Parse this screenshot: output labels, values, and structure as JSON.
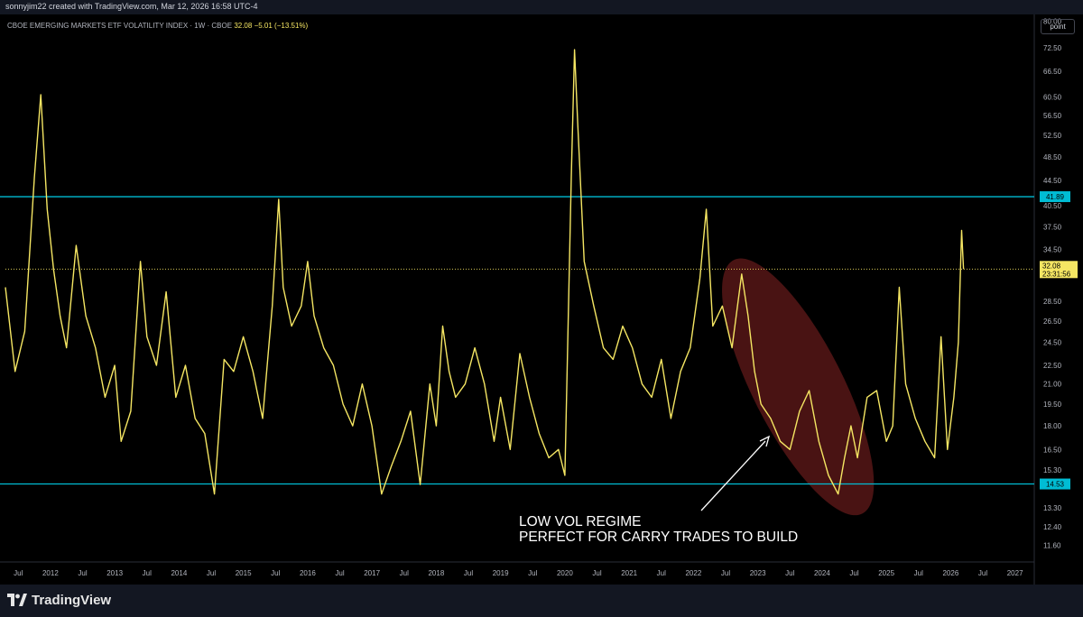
{
  "header": {
    "credit": "sonnyjim22 created with TradingView.com, Mar 12, 2026 16:58 UTC-4"
  },
  "legend": {
    "title": "CBOE EMERGING MARKETS ETF VOLATILITY INDEX · 1W · CBOE",
    "last": "32.08",
    "change": "−5.01 (−13.51%)"
  },
  "toolbar": {
    "point_label": "point"
  },
  "annotation": {
    "line1": "LOW VOL REGIME",
    "line2": "PERFECT FOR CARRY TRADES TO BUILD"
  },
  "footer": {
    "brand": "TradingView"
  },
  "colors": {
    "line": "#f5e663",
    "hline": "#00bcd4",
    "ellipse": "#7a2020",
    "price_tag": "#f5e663"
  },
  "chart_data": {
    "type": "line",
    "symbol": "CBOE Emerging Markets ETF Volatility Index (VXEEM), weekly",
    "y_scale": "log",
    "ylim": [
      10.9,
      82
    ],
    "xlim": [
      2011.3,
      2027.3
    ],
    "y_ticks": [
      "80.00",
      "72.50",
      "66.50",
      "60.50",
      "56.50",
      "52.50",
      "48.50",
      "44.50",
      "40.50",
      "37.50",
      "34.50",
      "28.50",
      "26.50",
      "24.50",
      "22.50",
      "21.00",
      "19.50",
      "18.00",
      "16.50",
      "15.30",
      "13.30",
      "12.40",
      "11.60"
    ],
    "x_ticks": [
      "Jul",
      "2012",
      "Jul",
      "2013",
      "Jul",
      "2014",
      "Jul",
      "2015",
      "Jul",
      "2016",
      "Jul",
      "2017",
      "Jul",
      "2018",
      "Jul",
      "2019",
      "Jul",
      "2020",
      "Jul",
      "2021",
      "Jul",
      "2022",
      "Jul",
      "2023",
      "Jul",
      "2024",
      "Jul",
      "2025",
      "Jul",
      "2026",
      "Jul",
      "2027"
    ],
    "horizontal_lines": [
      {
        "value": 41.89,
        "label": "41.89"
      },
      {
        "value": 14.53,
        "label": "14.53"
      }
    ],
    "last_price": {
      "value": 32.08,
      "label": "32.08",
      "countdown": "23:31:56"
    },
    "shaded_region": {
      "x": [
        2022.7,
        2024.55
      ],
      "y": [
        13.5,
        32.0
      ]
    },
    "series": [
      {
        "x": [
          2011.3,
          2011.45,
          2011.6,
          2011.75,
          2011.85,
          2011.95,
          2012.05,
          2012.15,
          2012.25,
          2012.4,
          2012.55,
          2012.7,
          2012.85,
          2013.0,
          2013.1,
          2013.25,
          2013.4,
          2013.5,
          2013.65,
          2013.8,
          2013.95,
          2014.1,
          2014.25,
          2014.4,
          2014.55,
          2014.7,
          2014.85,
          2015.0,
          2015.15,
          2015.3,
          2015.45,
          2015.55,
          2015.62,
          2015.75,
          2015.9,
          2016.0,
          2016.1,
          2016.25,
          2016.4,
          2016.55,
          2016.7,
          2016.85,
          2017.0,
          2017.15,
          2017.3,
          2017.45,
          2017.6,
          2017.75,
          2017.9,
          2018.0,
          2018.1,
          2018.2,
          2018.3,
          2018.45,
          2018.6,
          2018.75,
          2018.9,
          2019.0,
          2019.15,
          2019.3,
          2019.45,
          2019.6,
          2019.75,
          2019.9,
          2020.0,
          2020.1,
          2020.15,
          2020.2,
          2020.3,
          2020.45,
          2020.6,
          2020.75,
          2020.9,
          2021.05,
          2021.2,
          2021.35,
          2021.5,
          2021.65,
          2021.8,
          2021.95,
          2022.1,
          2022.2,
          2022.3,
          2022.45,
          2022.6,
          2022.75,
          2022.85,
          2022.95,
          2023.05,
          2023.2,
          2023.35,
          2023.5,
          2023.65,
          2023.8,
          2023.95,
          2024.1,
          2024.25,
          2024.35,
          2024.45,
          2024.55,
          2024.7,
          2024.85,
          2025.0,
          2025.1,
          2025.2,
          2025.3,
          2025.45,
          2025.6,
          2025.75,
          2025.85,
          2025.95,
          2026.05,
          2026.12,
          2026.17,
          2026.2
        ],
        "y": [
          30.0,
          22.0,
          25.5,
          45.0,
          61.0,
          40.0,
          32.0,
          27.0,
          24.0,
          35.0,
          27.0,
          24.0,
          20.0,
          22.5,
          17.0,
          19.0,
          33.0,
          25.0,
          22.5,
          29.5,
          20.0,
          22.5,
          18.5,
          17.5,
          14.0,
          23.0,
          22.0,
          25.0,
          22.0,
          18.5,
          28.0,
          41.5,
          30.0,
          26.0,
          28.0,
          33.0,
          27.0,
          24.0,
          22.5,
          19.5,
          18.0,
          21.0,
          18.0,
          14.0,
          15.5,
          17.0,
          19.0,
          14.5,
          21.0,
          18.0,
          26.0,
          22.0,
          20.0,
          21.0,
          24.0,
          21.0,
          17.0,
          20.0,
          16.5,
          23.5,
          20.0,
          17.5,
          16.0,
          16.5,
          15.0,
          45.0,
          72.0,
          55.0,
          33.0,
          28.0,
          24.0,
          23.0,
          26.0,
          24.0,
          21.0,
          20.0,
          23.0,
          18.5,
          22.0,
          24.0,
          31.0,
          40.0,
          26.0,
          28.0,
          24.0,
          31.5,
          27.0,
          22.0,
          19.5,
          18.5,
          17.0,
          16.5,
          19.0,
          20.5,
          17.0,
          15.0,
          14.0,
          16.0,
          18.0,
          16.0,
          20.0,
          20.5,
          17.0,
          18.0,
          30.0,
          21.0,
          18.5,
          17.0,
          16.0,
          25.0,
          16.5,
          20.0,
          24.5,
          37.0,
          32.08
        ]
      }
    ]
  }
}
